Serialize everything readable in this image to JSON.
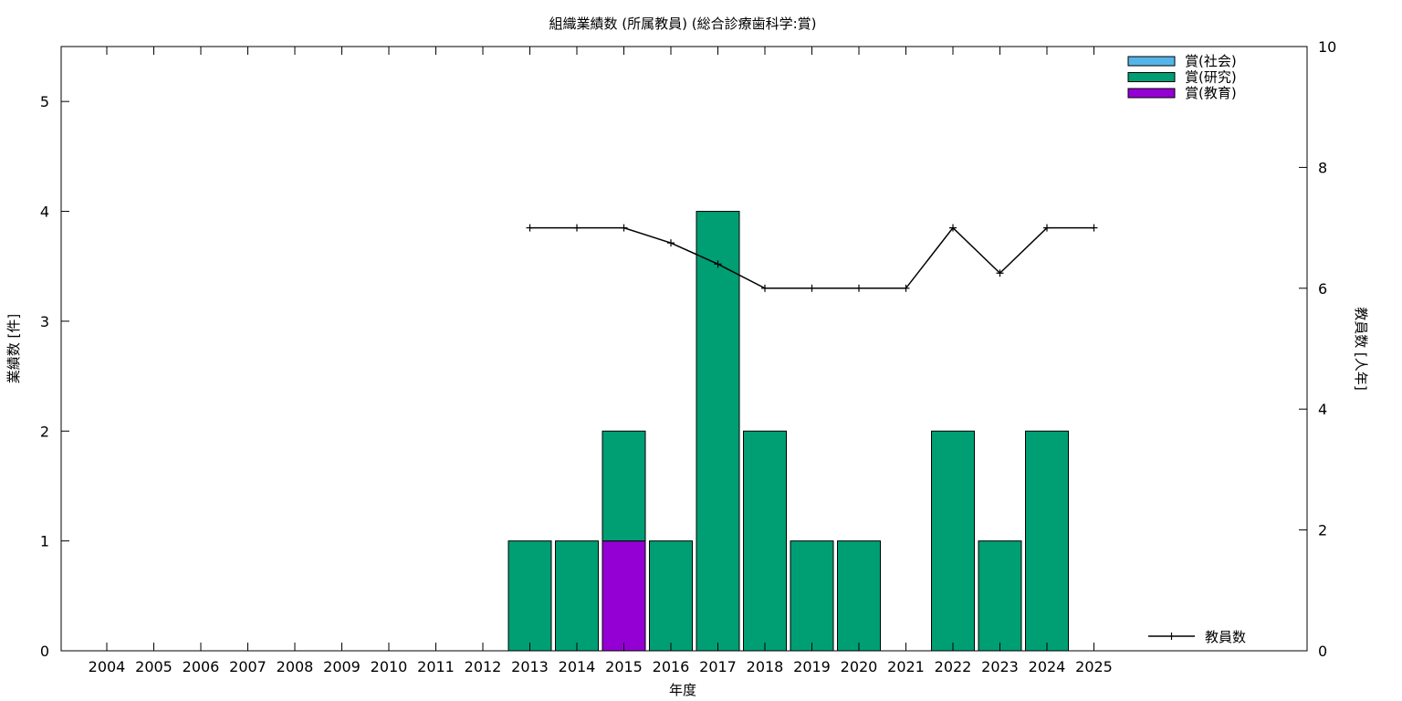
{
  "chart_data": {
    "type": "bar",
    "title": "組織業績数 (所属教員) (総合診療歯科学:賞)",
    "xlabel": "年度",
    "ylabel": "業績数 [件]",
    "y2label": "教員数 [人年]",
    "categories": [
      "2004",
      "2005",
      "2006",
      "2007",
      "2008",
      "2009",
      "2010",
      "2011",
      "2012",
      "2013",
      "2014",
      "2015",
      "2016",
      "2017",
      "2018",
      "2019",
      "2020",
      "2021",
      "2022",
      "2023",
      "2024",
      "2025"
    ],
    "ylim": [
      0,
      5.5
    ],
    "yticks": [
      0,
      1,
      2,
      3,
      4,
      5
    ],
    "y2lim": [
      0,
      10
    ],
    "y2ticks": [
      0,
      2,
      4,
      6,
      8,
      10
    ],
    "stacked": true,
    "grid": false,
    "series": [
      {
        "name": "賞(教育)",
        "color": "#9400d3",
        "values": [
          0,
          0,
          0,
          0,
          0,
          0,
          0,
          0,
          0,
          0,
          0,
          1,
          0,
          0,
          0,
          0,
          0,
          0,
          0,
          0,
          0,
          0
        ]
      },
      {
        "name": "賞(研究)",
        "color": "#009e73",
        "values": [
          0,
          0,
          0,
          0,
          0,
          0,
          0,
          0,
          0,
          1,
          1,
          1,
          1,
          4,
          2,
          1,
          1,
          0,
          2,
          1,
          2,
          0
        ]
      },
      {
        "name": "賞(社会)",
        "color": "#56b4e9",
        "values": [
          0,
          0,
          0,
          0,
          0,
          0,
          0,
          0,
          0,
          0,
          0,
          0,
          0,
          0,
          0,
          0,
          0,
          0,
          0,
          0,
          0,
          0
        ]
      }
    ],
    "legend_order": [
      "賞(社会)",
      "賞(研究)",
      "賞(教育)"
    ],
    "legend_placement": "top-right",
    "line": {
      "name": "教員数",
      "axis": "y2",
      "color": "#000000",
      "x": [
        "2013",
        "2014",
        "2015",
        "2016",
        "2017",
        "2018",
        "2019",
        "2020",
        "2021",
        "2022",
        "2023",
        "2024",
        "2025"
      ],
      "values": [
        7,
        7,
        7,
        6.75,
        6.4,
        6,
        6,
        6,
        6,
        7,
        6.25,
        7,
        7
      ]
    },
    "line_legend_placement": "bottom-right"
  }
}
